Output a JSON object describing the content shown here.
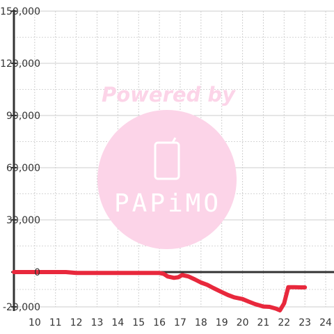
{
  "chart_data": {
    "type": "line",
    "title": "",
    "xlabel": "",
    "ylabel": "",
    "xlim": [
      9,
      24.4
    ],
    "ylim": [
      -20000,
      150000
    ],
    "x_ticks": [
      10,
      11,
      12,
      13,
      14,
      15,
      16,
      17,
      18,
      19,
      20,
      21,
      22,
      23,
      24
    ],
    "x_tick_labels": [
      "10",
      "11",
      "12",
      "13",
      "14",
      "15",
      "16",
      "17",
      "18",
      "19",
      "20",
      "21",
      "22",
      "23",
      "24"
    ],
    "y_ticks": [
      -20000,
      0,
      30000,
      60000,
      90000,
      120000,
      150000
    ],
    "y_tick_labels": [
      "-20,000",
      "0",
      "30,000",
      "60,000",
      "90,000",
      "120,000",
      "150,000"
    ],
    "grid": true,
    "legend": "none",
    "series": [
      {
        "color": "#e8283c",
        "x": [
          9,
          9.5,
          10,
          10.5,
          11,
          11.5,
          12,
          12.5,
          13,
          13.5,
          14,
          14.5,
          15,
          15.5,
          16,
          16.2,
          16.4,
          16.7,
          16.9,
          17.1,
          17.4,
          17.7,
          18,
          18.3,
          18.6,
          19,
          19.3,
          19.6,
          20,
          20.3,
          20.6,
          21,
          21.3,
          21.6,
          21.8,
          22.0,
          22.2,
          22.5,
          22.8,
          23.0
        ],
        "y": [
          0,
          0,
          0,
          0,
          0,
          0,
          -500,
          -500,
          -500,
          -500,
          -500,
          -500,
          -500,
          -500,
          -500,
          -1000,
          -2500,
          -3300,
          -3000,
          -1700,
          -2500,
          -4200,
          -6000,
          -7300,
          -9200,
          -11500,
          -13200,
          -14500,
          -15500,
          -17000,
          -18400,
          -19800,
          -20000,
          -21000,
          -22000,
          -18000,
          -8700,
          -8700,
          -8800,
          -8800
        ]
      }
    ]
  },
  "watermark": {
    "text": "Powered by",
    "logo_text": "PAPiMO",
    "color": "#fcd4e8"
  }
}
